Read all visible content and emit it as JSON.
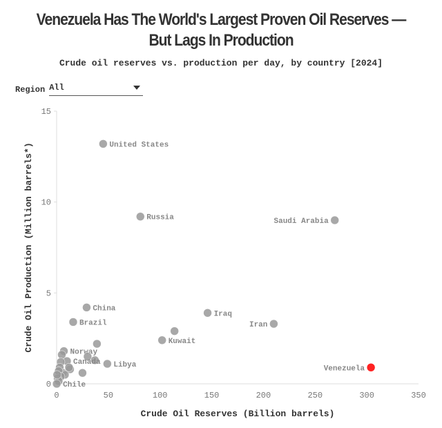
{
  "title": "Venezuela Has The World's Largest Proven Oil Reserves — But Lags In Production",
  "subtitle": "Crude oil reserves vs. production per day, by country [2024]",
  "filter": {
    "label": "Region",
    "value": "All",
    "icon": "caret-down-icon"
  },
  "chart_data": {
    "type": "scatter",
    "xlabel": "Crude Oil Reserves (Billion barrels)",
    "ylabel": "Crude Oil Production (Million barrels*)",
    "xlim": [
      0,
      350
    ],
    "ylim": [
      0,
      15
    ],
    "xticks": [
      0,
      50,
      100,
      150,
      200,
      250,
      300,
      350
    ],
    "yticks": [
      0,
      5,
      10,
      15
    ],
    "grid": false,
    "colors": {
      "default": "#999999",
      "highlight": "#ff2222"
    },
    "points": [
      {
        "label": "United States",
        "x": 45,
        "y": 13.2
      },
      {
        "label": "Russia",
        "x": 81,
        "y": 9.2
      },
      {
        "label": "Saudi Arabia",
        "x": 269,
        "y": 9.0,
        "label_side": "left"
      },
      {
        "label": "China",
        "x": 29,
        "y": 4.2
      },
      {
        "label": "Brazil",
        "x": 16,
        "y": 3.4
      },
      {
        "label": "Iraq",
        "x": 146,
        "y": 3.9
      },
      {
        "label": "Iran",
        "x": 210,
        "y": 3.3,
        "label_side": "left"
      },
      {
        "label": "",
        "x": 114,
        "y": 2.9
      },
      {
        "label": "Kuwait",
        "x": 102,
        "y": 2.4
      },
      {
        "label": "",
        "x": 39,
        "y": 2.2
      },
      {
        "label": "Norway",
        "x": 7,
        "y": 1.8
      },
      {
        "label": "",
        "x": 30,
        "y": 1.5
      },
      {
        "label": "",
        "x": 37,
        "y": 1.3
      },
      {
        "label": "Libya",
        "x": 49,
        "y": 1.1
      },
      {
        "label": "Canada",
        "x": 10,
        "y": 1.25
      },
      {
        "label": "Venezuela",
        "x": 304,
        "y": 0.9,
        "label_side": "left",
        "highlight": true
      },
      {
        "label": "",
        "x": 25,
        "y": 0.6
      },
      {
        "label": "",
        "x": 13,
        "y": 0.8
      },
      {
        "label": "",
        "x": 12,
        "y": 0.9
      },
      {
        "label": "",
        "x": 5,
        "y": 1.6
      },
      {
        "label": "",
        "x": 4,
        "y": 1.2
      },
      {
        "label": "",
        "x": 3,
        "y": 0.9
      },
      {
        "label": "",
        "x": 6,
        "y": 0.6
      },
      {
        "label": "",
        "x": 8,
        "y": 0.5
      },
      {
        "label": "",
        "x": 2,
        "y": 0.7
      },
      {
        "label": "",
        "x": 4,
        "y": 0.4
      },
      {
        "label": "",
        "x": 1,
        "y": 0.3
      },
      {
        "label": "",
        "x": 2,
        "y": 0.15
      },
      {
        "label": "",
        "x": 0.5,
        "y": 0.5
      },
      {
        "label": "Chile",
        "x": 0.1,
        "y": 0.0
      }
    ]
  }
}
